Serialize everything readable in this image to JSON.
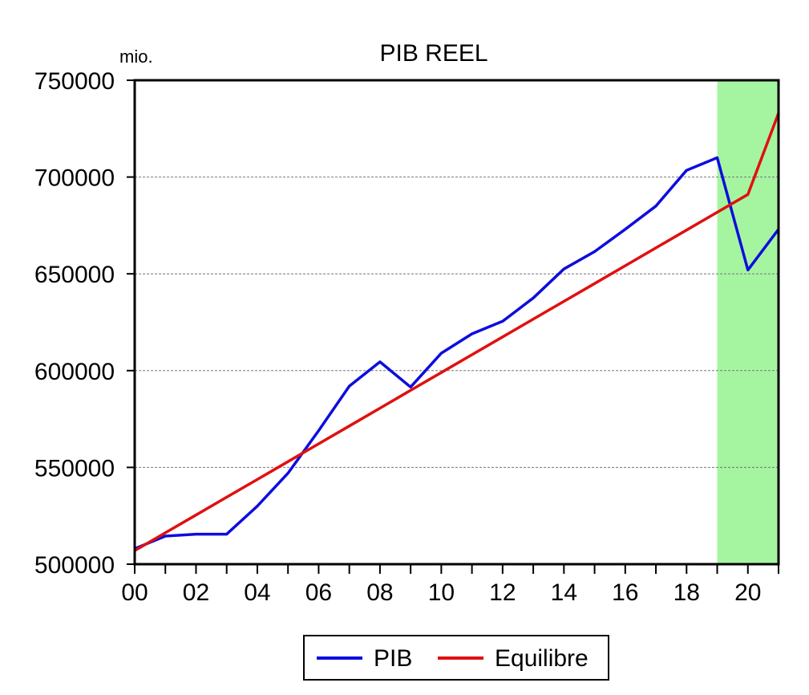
{
  "chart_data": {
    "type": "line",
    "title": "PIB REEL",
    "unit_label": "mio.",
    "xlabel": "",
    "ylabel": "",
    "x": [
      2000,
      2001,
      2002,
      2003,
      2004,
      2005,
      2006,
      2007,
      2008,
      2009,
      2010,
      2011,
      2012,
      2013,
      2014,
      2015,
      2016,
      2017,
      2018,
      2019,
      2020,
      2021
    ],
    "x_tick_labels": [
      "00",
      "02",
      "04",
      "06",
      "08",
      "10",
      "12",
      "14",
      "16",
      "18",
      "20"
    ],
    "y_ticks": [
      "500000",
      "550000",
      "600000",
      "650000",
      "700000",
      "750000"
    ],
    "ylim": [
      500000,
      750000
    ],
    "xlim": [
      2000,
      2021
    ],
    "grid": "horizontal dashed",
    "shaded_region": {
      "from": 2019,
      "to": 2021,
      "color": "#a5f5a0"
    },
    "series": [
      {
        "name": "PIB",
        "color": "#0d0dde",
        "values": [
          508000,
          514500,
          515500,
          515500,
          530000,
          547000,
          569000,
          592000,
          604500,
          591500,
          609000,
          619000,
          625500,
          637500,
          652500,
          661500,
          673000,
          685000,
          703500,
          710000,
          652000,
          673000
        ]
      },
      {
        "name": "Equilibre",
        "color": "#e01010",
        "values": [
          507000,
          516200,
          525400,
          534600,
          543800,
          553000,
          562200,
          571400,
          580600,
          589800,
          599000,
          608200,
          617400,
          626600,
          635800,
          645000,
          654200,
          663400,
          672600,
          681800,
          691000,
          733000
        ]
      }
    ],
    "legend_position": "bottom-center"
  }
}
